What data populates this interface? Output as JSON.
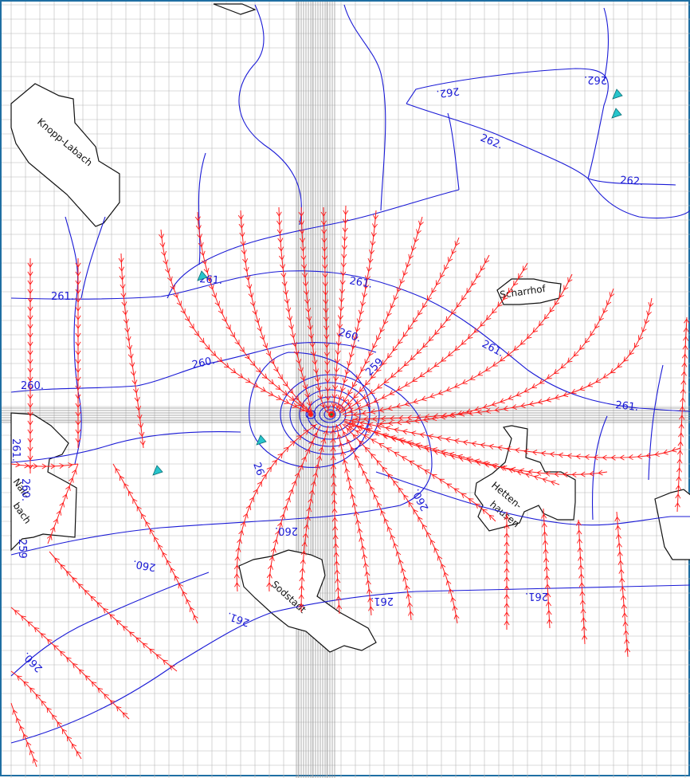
{
  "colors": {
    "frame": "#1f6fa3",
    "grid": "#b8b8b8",
    "grid_thick": "#8c8c8c",
    "contour": "#1a1ad6",
    "flow": "#ff1a1a",
    "wells": "#27c5cc",
    "town_outline": "#111111",
    "background": "#ffffff"
  },
  "map": {
    "towns": [
      {
        "id": "knopp-labach",
        "label": "Knopp-Labach"
      },
      {
        "id": "scharrhof",
        "label": "Scharrhof"
      },
      {
        "id": "hettenhausen",
        "label": "Hetten-\nhausen"
      },
      {
        "id": "sodstadt",
        "label": "Sodstadt"
      },
      {
        "id": "nall",
        "label": "Nall-\nbach"
      }
    ],
    "contour_labels": [
      {
        "text": "262."
      },
      {
        "text": "262."
      },
      {
        "text": "262."
      },
      {
        "text": "262."
      },
      {
        "text": "261."
      },
      {
        "text": "261."
      },
      {
        "text": "261."
      },
      {
        "text": "261."
      },
      {
        "text": "261."
      },
      {
        "text": "261."
      },
      {
        "text": "261."
      },
      {
        "text": "261."
      },
      {
        "text": "261."
      },
      {
        "text": "260."
      },
      {
        "text": "260."
      },
      {
        "text": "260."
      },
      {
        "text": "260."
      },
      {
        "text": "260."
      },
      {
        "text": "260."
      },
      {
        "text": "260."
      },
      {
        "text": "260."
      },
      {
        "text": "259"
      },
      {
        "text": "259"
      },
      {
        "text": "26"
      }
    ],
    "wells": [
      {
        "id": "well-1"
      },
      {
        "id": "well-2"
      },
      {
        "id": "well-3"
      },
      {
        "id": "well-4"
      },
      {
        "id": "well-5"
      }
    ]
  }
}
